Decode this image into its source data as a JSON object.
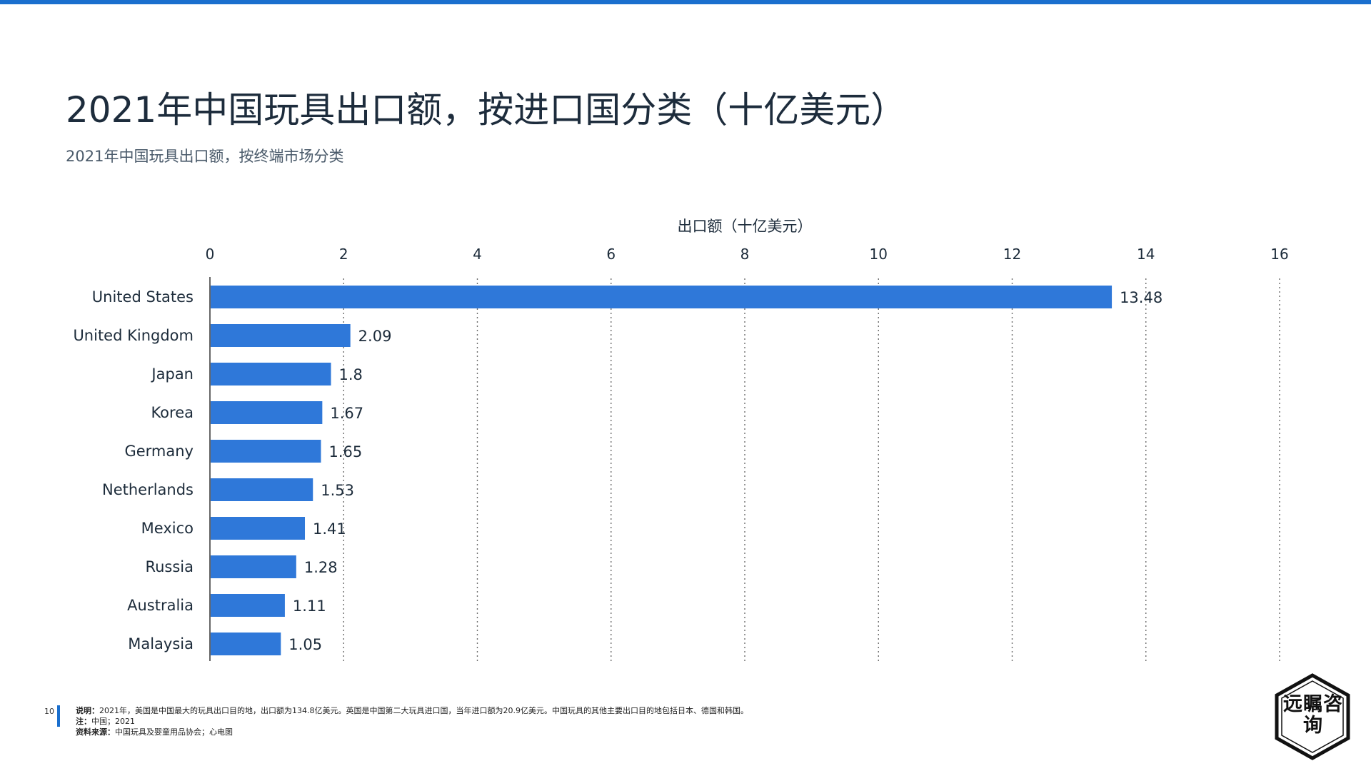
{
  "page": {
    "title": "2021年中国玩具出口额，按进口国分类（十亿美元）",
    "subtitle": "2021年中国玩具出口额，按终端市场分类",
    "accent_color": "#1a6fce"
  },
  "chart_data": {
    "type": "bar",
    "orientation": "horizontal",
    "xlabel": "出口额（十亿美元）",
    "xlim": [
      0,
      16
    ],
    "x_ticks": [
      0,
      2,
      4,
      6,
      8,
      10,
      12,
      14,
      16
    ],
    "categories": [
      "United States",
      "United Kingdom",
      "Japan",
      "Korea",
      "Germany",
      "Netherlands",
      "Mexico",
      "Russia",
      "Australia",
      "Malaysia"
    ],
    "values": [
      13.48,
      2.09,
      1.8,
      1.67,
      1.65,
      1.53,
      1.41,
      1.28,
      1.11,
      1.05
    ],
    "value_labels": [
      "13.48",
      "2.09",
      "1.8",
      "1.67",
      "1.65",
      "1.53",
      "1.41",
      "1.28",
      "1.11",
      "1.05"
    ],
    "bar_color": "#2f78d9",
    "grid": "vertical dotted",
    "legend": "none"
  },
  "footer": {
    "page_number": "10",
    "note_label": "说明：",
    "note_text": "2021年，美国是中国最大的玩具出口目的地，出口额为134.8亿美元。英国是中国第二大玩具进口国，当年进口额为20.9亿美元。中国玩具的其他主要出口目的地包括日本、德国和韩国。",
    "remark_label": "注：",
    "remark_text": "中国；2021",
    "source_label": "资料来源：",
    "source_text": "中国玩具及婴童用品协会；心电图"
  },
  "logo": {
    "text": "远瞩咨询"
  }
}
